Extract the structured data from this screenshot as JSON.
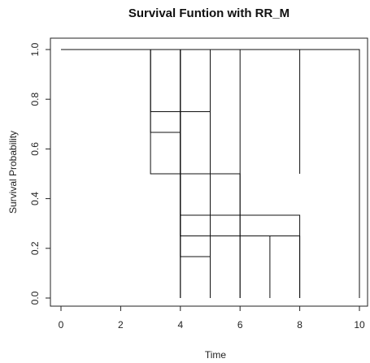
{
  "chart_data": {
    "type": "line",
    "title": "Survival Funtion with RR_M",
    "xlabel": "Time",
    "ylabel": "Survival Probability",
    "xlim": [
      0,
      10
    ],
    "ylim": [
      0,
      1
    ],
    "x_ticks": [
      0,
      2,
      4,
      6,
      8,
      10
    ],
    "y_ticks": [
      0.0,
      0.2,
      0.4,
      0.6,
      0.8,
      1.0
    ],
    "x_tick_labels": [
      "0",
      "2",
      "4",
      "6",
      "8",
      "10"
    ],
    "y_tick_labels": [
      "0.0",
      "0.2",
      "0.4",
      "0.6",
      "0.8",
      "1.0"
    ],
    "grid": false,
    "legend": "none",
    "line_color": "#111111",
    "series": [
      {
        "points": [
          [
            0,
            1
          ],
          [
            10,
            1
          ]
        ]
      },
      {
        "points": [
          [
            0,
            1
          ],
          [
            3,
            1
          ],
          [
            3,
            0.5
          ],
          [
            5,
            0.5
          ],
          [
            5,
            0
          ]
        ]
      },
      {
        "points": [
          [
            0,
            1
          ],
          [
            3,
            1
          ],
          [
            3,
            0.75
          ],
          [
            4,
            0.75
          ],
          [
            4,
            0
          ]
        ]
      },
      {
        "points": [
          [
            0,
            1
          ],
          [
            3,
            1
          ],
          [
            3,
            0.75
          ],
          [
            5,
            0.75
          ],
          [
            5,
            0.5
          ],
          [
            6,
            0.5
          ],
          [
            6,
            0
          ]
        ]
      },
      {
        "points": [
          [
            0,
            1
          ],
          [
            3,
            1
          ],
          [
            3,
            0.6667
          ],
          [
            4,
            0.6667
          ],
          [
            4,
            0
          ]
        ]
      },
      {
        "points": [
          [
            0,
            1
          ],
          [
            4,
            1
          ],
          [
            4,
            0.3333
          ],
          [
            8,
            0.3333
          ],
          [
            8,
            0
          ]
        ]
      },
      {
        "points": [
          [
            0,
            1
          ],
          [
            4,
            1
          ],
          [
            4,
            0.25
          ],
          [
            7,
            0.25
          ],
          [
            7,
            0
          ]
        ]
      },
      {
        "points": [
          [
            0,
            1
          ],
          [
            4,
            1
          ],
          [
            4,
            0.25
          ],
          [
            8,
            0.25
          ],
          [
            8,
            0
          ]
        ]
      },
      {
        "points": [
          [
            0,
            1
          ],
          [
            4,
            1
          ],
          [
            4,
            0.1667
          ],
          [
            5,
            0.1667
          ],
          [
            5,
            0
          ]
        ]
      },
      {
        "points": [
          [
            0,
            1
          ],
          [
            5,
            1
          ],
          [
            5,
            0
          ]
        ]
      },
      {
        "points": [
          [
            0,
            1
          ],
          [
            6,
            1
          ],
          [
            6,
            0
          ]
        ]
      },
      {
        "points": [
          [
            0,
            1
          ],
          [
            8,
            1
          ],
          [
            8,
            0.5
          ]
        ]
      },
      {
        "points": [
          [
            0,
            1
          ],
          [
            10,
            1
          ],
          [
            10,
            0
          ]
        ]
      }
    ]
  }
}
